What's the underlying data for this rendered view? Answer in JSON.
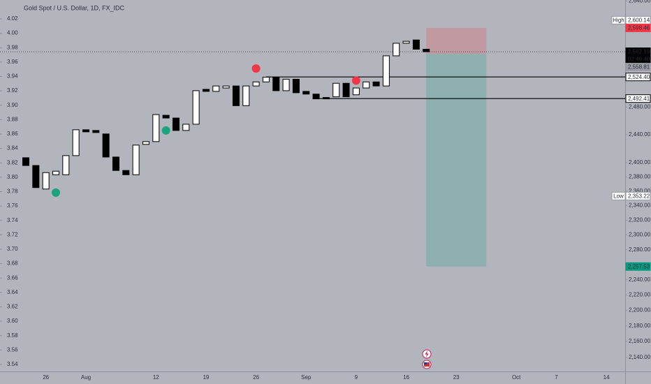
{
  "chart_data": {
    "type": "candlestick",
    "title": "Gold Spot / U.S. Dollar, 1D, FX_IDC",
    "categories": [
      null,
      null,
      "26",
      null,
      null,
      null,
      "Aug",
      null,
      null,
      null,
      null,
      null,
      null,
      "12",
      null,
      null,
      null,
      null,
      "19",
      null,
      null,
      null,
      null,
      "26",
      null,
      null,
      null,
      null,
      "Sep",
      null,
      null,
      null,
      null,
      "9",
      null,
      null,
      null,
      null,
      "16",
      null,
      null,
      null,
      null,
      "23",
      null,
      null,
      null,
      null,
      null,
      "Oct",
      null,
      null,
      null,
      "7",
      null,
      null,
      null,
      null,
      "14",
      null
    ],
    "open": [
      2407,
      2396,
      2363,
      2383,
      2383,
      2410,
      2447,
      2446,
      2441,
      2408,
      2389,
      2383,
      2426,
      2430,
      2468,
      2464,
      2446,
      2455,
      2506,
      2503,
      2508,
      2511,
      2482,
      2511,
      2517,
      2524,
      2504,
      2521,
      2503,
      2499,
      2494,
      2495,
      2515,
      2498,
      2508,
      2517,
      2511,
      2556,
      2575,
      2580,
      2566,
      null,
      null,
      null,
      null,
      null,
      null,
      null,
      null,
      null,
      null,
      null,
      null,
      null,
      null,
      null,
      null,
      null,
      null,
      null
    ],
    "high": {
      "text": "High",
      "value": 2600.14,
      "label": "2,600.14"
    },
    "low": {
      "text": "Low",
      "value": 2353.22,
      "label": "2,353.22"
    },
    "close": [
      2396,
      2365,
      2386,
      2388,
      2410,
      2447,
      2444,
      2443,
      2408,
      2389,
      2383,
      2425,
      2430,
      2469,
      2464,
      2446,
      2455,
      2504,
      2503,
      2511,
      2511,
      2482,
      2511,
      2517,
      2524,
      2504,
      2521,
      2501,
      2499,
      2492,
      2492,
      2515,
      2495,
      2508,
      2517,
      2511,
      2556,
      2575,
      2578,
      2566,
      2562.19,
      null,
      null,
      null,
      null,
      null,
      null,
      null,
      null,
      null,
      null,
      null,
      null,
      null,
      null,
      null,
      null,
      null,
      null,
      null
    ],
    "up_color": "#ffffff",
    "down_color": "#000000",
    "log_scale": true,
    "grid": false,
    "ylim": [
      2123.9,
      2641.5
    ],
    "yticks": [
      {
        "value": 2640,
        "label": "2,640.00"
      },
      {
        "value": 2480,
        "label": "2,480.00"
      },
      {
        "value": 2440,
        "label": "2,440.00"
      },
      {
        "value": 2400,
        "label": "2,400.00"
      },
      {
        "value": 2380,
        "label": "2,380.00"
      },
      {
        "value": 2360,
        "label": "2,360.00"
      },
      {
        "value": 2340,
        "label": "2,340.00"
      },
      {
        "value": 2320,
        "label": "2,320.00"
      },
      {
        "value": 2300,
        "label": "2,300.00"
      },
      {
        "value": 2280,
        "label": "2,280.00"
      },
      {
        "value": 2240,
        "label": "2,240.00"
      },
      {
        "value": 2220,
        "label": "2,220.00"
      },
      {
        "value": 2200,
        "label": "2,200.00"
      },
      {
        "value": 2180,
        "label": "2,180.00"
      },
      {
        "value": 2160,
        "label": "2,160.00"
      },
      {
        "value": 2140,
        "label": "2,140.00"
      }
    ],
    "y2lim": [
      3.5322,
      4.0462
    ],
    "y2ticks": [
      3.54,
      3.56,
      3.58,
      {
        "value": 3.6,
        "label": "3.60"
      },
      3.62,
      3.64,
      3.66,
      3.68,
      {
        "value": 3.7,
        "label": "3.70"
      },
      3.72,
      3.74,
      3.76,
      3.78,
      {
        "value": 3.8,
        "label": "3.80"
      },
      3.82,
      3.84,
      3.86,
      3.88,
      {
        "value": 3.9,
        "label": "3.90"
      },
      3.92,
      3.94,
      3.96,
      3.98,
      {
        "value": 4.0,
        "label": "4.00"
      },
      4.02
    ],
    "signals": [
      {
        "x": 3,
        "value": 2358,
        "color": "#1ba37e"
      },
      {
        "x": 14,
        "value": 2446,
        "color": "#1ba37e"
      },
      {
        "x": 23,
        "value": 2537,
        "color": "#f23645"
      },
      {
        "x": 33,
        "value": 2519,
        "color": "#f23645"
      }
    ],
    "levels": [
      {
        "value": 2524.4,
        "label": "2,524.40",
        "start": 24
      },
      {
        "value": 2492.41,
        "label": "2,492.41",
        "start": 29
      }
    ],
    "position": {
      "start": 40,
      "end": 46,
      "stop": 2598.46,
      "stop_label": "2,598.46",
      "stop_color": "rgba(242,54,69,0.22)",
      "entry": 2558.81,
      "entry_label": "2,558.81",
      "target": 2257.53,
      "target_label": "2,257.53",
      "target_color": "rgba(8,153,129,0.22)"
    },
    "last": {
      "value": 2562.19,
      "label": "2,562.19",
      "countdown": "02:49:40"
    }
  }
}
